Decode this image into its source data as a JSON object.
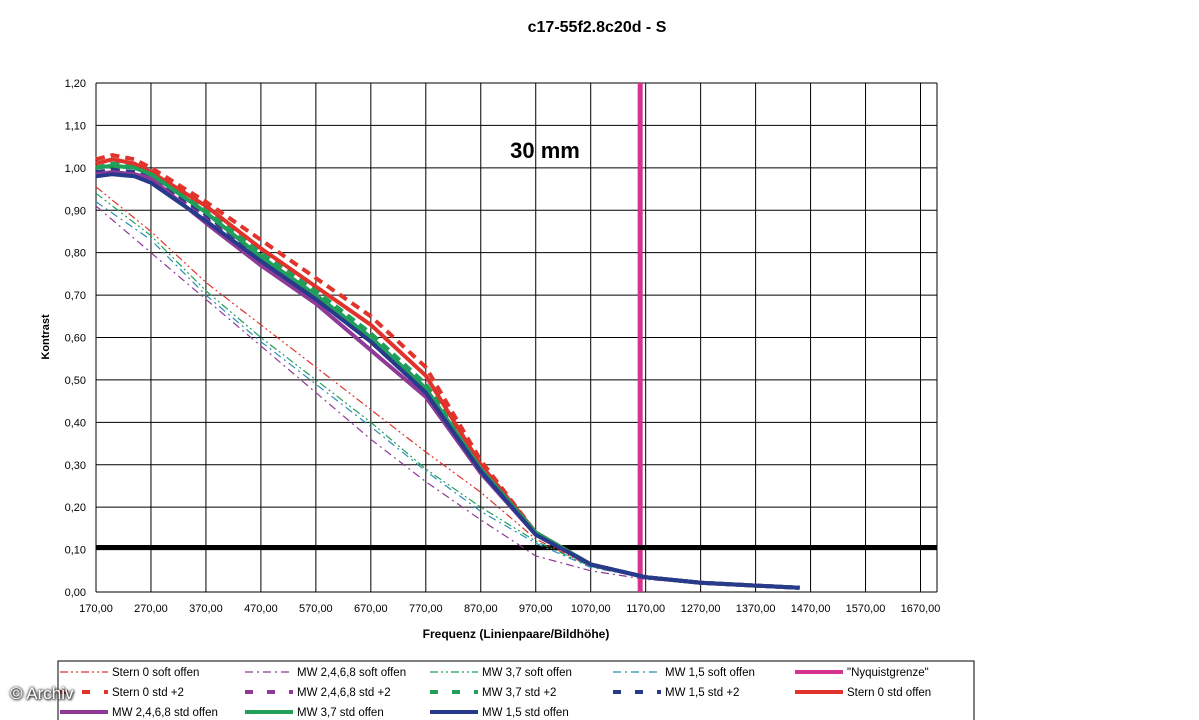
{
  "chart_data": {
    "type": "line",
    "title": "c17-55f2.8c20d - S",
    "annotation": "30 mm",
    "xlabel": "Frequenz (Linienpaare/Bildhöhe)",
    "ylabel": "Kontrast",
    "xlim": [
      170,
      1700
    ],
    "ylim": [
      0,
      1.2
    ],
    "x_ticks": [
      "170,00",
      "270,00",
      "370,00",
      "470,00",
      "570,00",
      "670,00",
      "770,00",
      "870,00",
      "970,00",
      "1070,00",
      "1170,00",
      "1270,00",
      "1370,00",
      "1470,00",
      "1570,00",
      "1670,00"
    ],
    "y_ticks": [
      "0,00",
      "0,10",
      "0,20",
      "0,30",
      "0,40",
      "0,50",
      "0,60",
      "0,70",
      "0,80",
      "0,90",
      "1,00",
      "1,10",
      "1,20"
    ],
    "grid": true,
    "legend_position": "bottom",
    "reference_lines": [
      {
        "name": "\"Nyquistgrenze\"",
        "orientation": "vertical",
        "x": 1160,
        "color": "#d6338f"
      },
      {
        "orientation": "horizontal",
        "y": 0.105,
        "color": "#000000"
      }
    ],
    "series": [
      {
        "name": "Stern 0 soft offen",
        "color": "#e0332c",
        "style": "dashdotdot",
        "width": 1.2,
        "x": [
          170,
          270,
          370,
          470,
          570,
          670,
          770,
          870,
          970,
          1070,
          1170,
          1270,
          1370,
          1450
        ],
        "y": [
          0.955,
          0.85,
          0.73,
          0.63,
          0.53,
          0.43,
          0.33,
          0.235,
          0.125,
          0.06,
          0.035,
          0.022,
          0.015,
          0.01
        ]
      },
      {
        "name": "MW 2,4,6,8 soft offen",
        "color": "#8e3a96",
        "style": "dashdot",
        "width": 1.2,
        "x": [
          170,
          270,
          370,
          470,
          570,
          670,
          770,
          870,
          970,
          1070,
          1170,
          1270,
          1370,
          1450
        ],
        "y": [
          0.91,
          0.8,
          0.69,
          0.58,
          0.47,
          0.36,
          0.26,
          0.17,
          0.085,
          0.05,
          0.03,
          0.02,
          0.013,
          0.008
        ]
      },
      {
        "name": "MW 3,7 soft offen",
        "color": "#1f9f5a",
        "style": "dashdotdot",
        "width": 1.2,
        "x": [
          170,
          270,
          370,
          470,
          570,
          670,
          770,
          870,
          970,
          1070,
          1170,
          1270,
          1370,
          1450
        ],
        "y": [
          0.94,
          0.84,
          0.71,
          0.6,
          0.5,
          0.4,
          0.29,
          0.2,
          0.12,
          0.06,
          0.035,
          0.022,
          0.015,
          0.01
        ]
      },
      {
        "name": "MW 1,5 soft offen",
        "color": "#2a8db5",
        "style": "dashdot",
        "width": 1.2,
        "x": [
          170,
          270,
          370,
          470,
          570,
          670,
          770,
          870,
          970,
          1070,
          1170,
          1270,
          1370,
          1450
        ],
        "y": [
          0.92,
          0.83,
          0.7,
          0.59,
          0.49,
          0.39,
          0.285,
          0.19,
          0.115,
          0.058,
          0.034,
          0.022,
          0.015,
          0.01
        ]
      },
      {
        "name": "Stern 0 std +2",
        "color": "#e0332c",
        "style": "dashed",
        "width": 4,
        "x": [
          170,
          200,
          240,
          270,
          370,
          470,
          570,
          670,
          770,
          870,
          970,
          1070,
          1170,
          1270,
          1370,
          1450
        ],
        "y": [
          1.02,
          1.03,
          1.02,
          1.0,
          0.92,
          0.83,
          0.74,
          0.65,
          0.53,
          0.31,
          0.14,
          0.065,
          0.035,
          0.022,
          0.015,
          0.01
        ]
      },
      {
        "name": "MW 2,4,6,8 std +2",
        "color": "#8e3a96",
        "style": "dashed",
        "width": 4,
        "x": [
          170,
          200,
          240,
          270,
          370,
          470,
          570,
          670,
          770,
          870,
          970,
          1070,
          1170,
          1270,
          1370,
          1450
        ],
        "y": [
          0.99,
          0.99,
          0.985,
          0.975,
          0.88,
          0.78,
          0.69,
          0.59,
          0.47,
          0.29,
          0.14,
          0.065,
          0.035,
          0.022,
          0.015,
          0.01
        ]
      },
      {
        "name": "MW 3,7 std +2",
        "color": "#1f9f5a",
        "style": "dashed",
        "width": 4,
        "x": [
          170,
          200,
          240,
          270,
          370,
          470,
          570,
          670,
          770,
          870,
          970,
          1070,
          1170,
          1270,
          1370,
          1450
        ],
        "y": [
          1.0,
          1.01,
          1.005,
          0.99,
          0.905,
          0.8,
          0.71,
          0.61,
          0.49,
          0.3,
          0.14,
          0.065,
          0.035,
          0.022,
          0.015,
          0.01
        ]
      },
      {
        "name": "MW 1,5 std +2",
        "color": "#283a8c",
        "style": "dashed",
        "width": 4,
        "x": [
          170,
          200,
          240,
          270,
          370,
          470,
          570,
          670,
          770,
          870,
          970,
          1070,
          1170,
          1270,
          1370,
          1450
        ],
        "y": [
          0.99,
          0.995,
          0.99,
          0.98,
          0.89,
          0.79,
          0.7,
          0.6,
          0.48,
          0.29,
          0.14,
          0.065,
          0.035,
          0.022,
          0.015,
          0.01
        ]
      },
      {
        "name": "Stern 0 std offen",
        "color": "#e0332c",
        "style": "solid",
        "width": 4,
        "x": [
          170,
          200,
          240,
          270,
          370,
          470,
          570,
          670,
          770,
          870,
          970,
          1070,
          1170,
          1270,
          1370,
          1450
        ],
        "y": [
          1.01,
          1.02,
          1.01,
          0.99,
          0.91,
          0.81,
          0.72,
          0.63,
          0.51,
          0.3,
          0.14,
          0.065,
          0.035,
          0.022,
          0.015,
          0.01
        ]
      },
      {
        "name": "MW 2,4,6,8 std offen",
        "color": "#8e3a96",
        "style": "solid",
        "width": 4,
        "x": [
          170,
          200,
          240,
          270,
          370,
          470,
          570,
          670,
          770,
          870,
          970,
          1070,
          1170,
          1270,
          1370,
          1450
        ],
        "y": [
          0.985,
          0.99,
          0.985,
          0.975,
          0.87,
          0.77,
          0.68,
          0.57,
          0.46,
          0.28,
          0.135,
          0.065,
          0.035,
          0.022,
          0.015,
          0.01
        ]
      },
      {
        "name": "MW 3,7 std offen",
        "color": "#1f9f5a",
        "style": "solid",
        "width": 4,
        "x": [
          170,
          200,
          240,
          270,
          370,
          470,
          570,
          670,
          770,
          870,
          970,
          1070,
          1170,
          1270,
          1370,
          1450
        ],
        "y": [
          1.0,
          1.005,
          1.0,
          0.985,
          0.895,
          0.79,
          0.7,
          0.6,
          0.48,
          0.29,
          0.14,
          0.065,
          0.035,
          0.022,
          0.015,
          0.01
        ]
      },
      {
        "name": "MW 1,5 std offen",
        "color": "#283a8c",
        "style": "solid",
        "width": 4,
        "x": [
          170,
          200,
          240,
          270,
          370,
          470,
          570,
          670,
          770,
          870,
          970,
          1070,
          1170,
          1270,
          1370,
          1450
        ],
        "y": [
          0.98,
          0.985,
          0.98,
          0.965,
          0.875,
          0.78,
          0.69,
          0.59,
          0.47,
          0.285,
          0.135,
          0.065,
          0.035,
          0.022,
          0.015,
          0.01
        ]
      }
    ]
  },
  "watermark": "© Archiv"
}
